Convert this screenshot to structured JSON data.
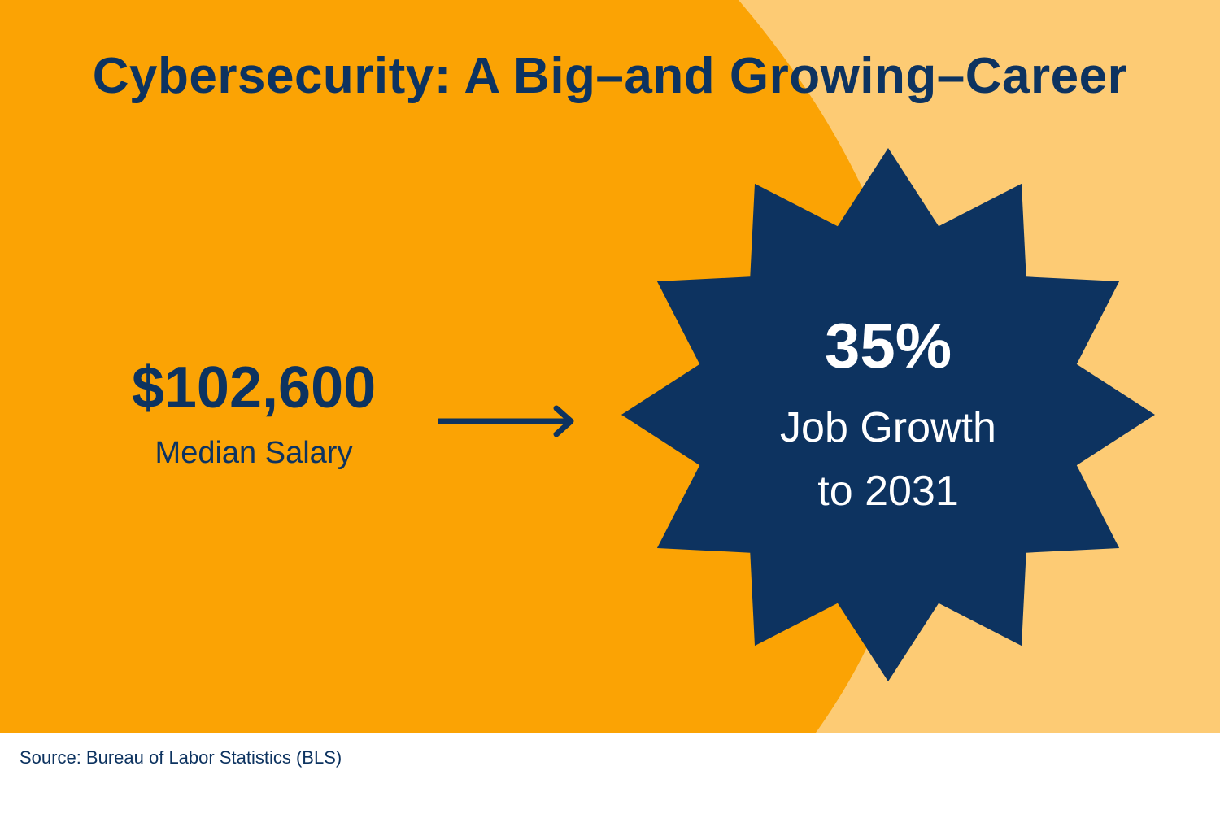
{
  "title": "Cybersecurity: A Big–and Growing–Career",
  "salary": {
    "value": "$102,600",
    "label": "Median Salary"
  },
  "growth": {
    "value": "35%",
    "label_line1": "Job Growth",
    "label_line2": "to 2031"
  },
  "source": "Source: Bureau of Labor Statistics (BLS)",
  "icons": {
    "arrow": "arrow-right-icon",
    "starburst": "starburst-badge"
  },
  "colors": {
    "navy": "#0d3360",
    "orange": "#fba304",
    "light_orange": "#fdcb74",
    "white": "#ffffff"
  }
}
